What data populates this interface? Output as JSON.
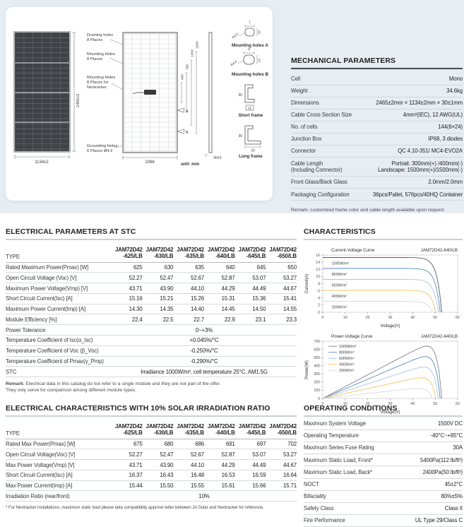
{
  "page": {
    "band_bg": "#e6edf3",
    "bg": "#ffffff",
    "accent_dark": "#4a4b4d",
    "rule_gray": "#c7d0d8"
  },
  "drawing": {
    "front": {
      "height_dim": "2465±2",
      "width_dim": "1134±2"
    },
    "back": {
      "labels": [
        {
          "l1": "Draining holes",
          "l2": "8 Places"
        },
        {
          "l1": "Mounting Holes",
          "l2": "8 Places"
        },
        {
          "l1": "Mounting Holes",
          "l2": "8 Places for",
          "l3": "Nextracker"
        },
        {
          "l1": "Grounding Holes",
          "l2": "6 Places Ø4.2"
        }
      ],
      "width_dim": "1086",
      "dims": [
        "400",
        "790",
        "1300",
        "1600"
      ],
      "marker_a": "A",
      "marker_b": "B"
    },
    "side_dim": "30±1",
    "unit": "unit: mm",
    "details": {
      "a": {
        "title": "Mounting holes A",
        "w": "7",
        "h": "10",
        "r": "R3.5"
      },
      "b": {
        "title": "Mounting holes B",
        "w": "9",
        "h": "14",
        "r": "R4.5"
      },
      "sf": {
        "title": "Short frame",
        "h": "30",
        "w": "15"
      },
      "lf": {
        "title": "Long frame",
        "h": "30",
        "w": "33"
      }
    }
  },
  "mechanical": {
    "title": "MECHANICAL PARAMETERS",
    "rows": [
      {
        "label": "Cell",
        "value": "Mono"
      },
      {
        "label": "Weight",
        "value": "34.6kg"
      },
      {
        "label": "Dimensions",
        "value": "2465±2mm × 1134±2mm × 30±1mm"
      },
      {
        "label": "Cable Cross Section Size",
        "value": "4mm²(IEC), 12 AWG(UL)"
      },
      {
        "label": "No. of cells",
        "value": "144(6×24)"
      },
      {
        "label": "Junction Box",
        "value": "IP68, 3 diodes"
      },
      {
        "label": "Connector",
        "value": "QC 4.10-351/ MC4-EVO2A"
      },
      {
        "label": "Cable Length",
        "label2": "(Including Connector)",
        "value": "Portrait: 300mm(+) /400mm(-)",
        "value2": "Landscape: 1500mm(+)/1500mm(-)"
      },
      {
        "label": "Front Glass/Back Glass",
        "value": "2.0mm/2.0mm"
      },
      {
        "label": "Packaging Configuration",
        "value": "36pcs/Pallet, 576pcs/40HQ Container"
      }
    ],
    "remark": "Remark: customized frame color and cable length available upon request"
  },
  "stc": {
    "title": "ELECTRICAL PARAMETERS AT STC",
    "type_header": "TYPE",
    "model": "JAM72D42",
    "variants": [
      "-625/LB",
      "-630/LB",
      "-635/LB",
      "-640/LB",
      "-645/LB",
      "-650/LB"
    ],
    "rows": [
      {
        "label": "Rated Maximum Power(Pmax) [W]",
        "values": [
          "625",
          "630",
          "635",
          "640",
          "645",
          "650"
        ]
      },
      {
        "label": "Open Circuit Voltage (Voc) [V]",
        "values": [
          "52.27",
          "52.47",
          "52.67",
          "52.87",
          "53.07",
          "53.27"
        ]
      },
      {
        "label": "Maximum Power Voltage(Vmp) [V]",
        "values": [
          "43.71",
          "43.90",
          "44.10",
          "44.29",
          "44.49",
          "44.67"
        ]
      },
      {
        "label": "Short Circuit Current(Isc) [A]",
        "values": [
          "15.16",
          "15.21",
          "15.26",
          "15.31",
          "15.36",
          "15.41"
        ]
      },
      {
        "label": "Maximum Power Current(Imp) [A]",
        "values": [
          "14.30",
          "14.35",
          "14.40",
          "14.45",
          "14.50",
          "14.55"
        ]
      },
      {
        "label": "Module Efficiency [%]",
        "values": [
          "22.4",
          "22.5",
          "22.7",
          "22.9",
          "23.1",
          "23.3"
        ]
      },
      {
        "label": "Power Tolerance",
        "span": "0~+3%"
      },
      {
        "label": "Temperature Coefficient of Isc(α_Isc)",
        "span": "+0.045%/°C"
      },
      {
        "label": "Temperature Coefficient of Voc (β_Voc)",
        "span": "-0.250%/°C"
      },
      {
        "label": "Temperature Coefficient of Pmax(γ_Pmp)",
        "span": "-0.290%/°C"
      },
      {
        "label": "STC",
        "span": "Irradiance 1000W/m², cell temperature 25°C, AM1.5G"
      }
    ],
    "remark_bold": "Remark:",
    "remark_line1": "Electrical data in this catalog do not refer to a single module and they are not part of the offer.",
    "remark_line2": "They only serve for comparison among different module types."
  },
  "ratio": {
    "title": "ELECTRICAL CHARACTERISTICS WITH 10% SOLAR IRRADIATION RATIO",
    "type_header": "TYPE",
    "model": "JAM72D42",
    "variants": [
      "-625/LB",
      "-630/LB",
      "-635/LB",
      "-640/LB",
      "-645/LB",
      "-650/LB"
    ],
    "rows": [
      {
        "label": "Rated Max Power(Pmax) [W]",
        "values": [
          "675",
          "680",
          "686",
          "691",
          "697",
          "702"
        ]
      },
      {
        "label": "Open Circuit Voltage(Voc) [V]",
        "values": [
          "52.27",
          "52.47",
          "52.67",
          "52.87",
          "53.07",
          "53.27"
        ]
      },
      {
        "label": "Max Power Voltage(Vmp) [V]",
        "values": [
          "43.71",
          "43.90",
          "44.10",
          "44.29",
          "44.49",
          "44.67"
        ]
      },
      {
        "label": "Short Circuit Current(Isc) [A]",
        "values": [
          "16.37",
          "16.43",
          "16.48",
          "16.53",
          "16.59",
          "16.64"
        ]
      },
      {
        "label": "Max Power Current(Imp) [A]",
        "values": [
          "15.44",
          "15.50",
          "15.55",
          "15.61",
          "15.66",
          "15.71"
        ]
      },
      {
        "label": "Irradiation Ratio (rear/front)",
        "span": "10%"
      }
    ],
    "footnote": "* For Nextracker installations, maximum static load please take compatibility approve letter between JA Solar and Nextracker for reference."
  },
  "characteristics": {
    "title": "CHARACTERISTICS"
  },
  "chart_data": [
    {
      "type": "line",
      "id": "iv",
      "title": "Current-Voltage Curve",
      "model": "JAM72D42-640/LB",
      "xlabel": "Voltage(V)",
      "ylabel": "Current(A)",
      "xlim": [
        0,
        60
      ],
      "ylim": [
        0,
        16
      ],
      "xticks": [
        0,
        10,
        20,
        30,
        40,
        50,
        60
      ],
      "yticks": [
        0,
        2,
        4,
        6,
        8,
        10,
        12,
        14,
        16
      ],
      "grid": false,
      "legend": "text",
      "series": [
        {
          "name": "1000W/m²",
          "color": "#58595b",
          "isc": 15.31,
          "voc": 52.9
        },
        {
          "name": "800W/m²",
          "color": "#5b8ac2",
          "isc": 12.25,
          "voc": 52.2
        },
        {
          "name": "600W/m²",
          "color": "#a9c7e3",
          "isc": 9.19,
          "voc": 51.4
        },
        {
          "name": "400W/m²",
          "color": "#f2c564",
          "isc": 6.12,
          "voc": 50.3
        },
        {
          "name": "200W/m²",
          "color": "#d9d9d9",
          "isc": 3.06,
          "voc": 48.8
        }
      ]
    },
    {
      "type": "line",
      "id": "pv",
      "title": "Power-Voltage Curve",
      "model": "JAM72D42-640/LB",
      "xlabel": "Voltage(V)",
      "ylabel": "Power(W)",
      "xlim": [
        0,
        60
      ],
      "ylim": [
        0,
        700
      ],
      "xticks": [
        0,
        10,
        20,
        30,
        40,
        50,
        60
      ],
      "yticks": [
        0,
        100,
        200,
        300,
        400,
        500,
        600,
        700
      ],
      "grid": false,
      "legend": "swatch",
      "series": [
        {
          "name": "1000W/m²",
          "color": "#808285",
          "isc": 15.31,
          "voc": 52.9,
          "pmax": 640
        },
        {
          "name": "800W/m²",
          "color": "#5b8ac2",
          "isc": 12.25,
          "voc": 52.2,
          "pmax": 512
        },
        {
          "name": "600W/m²",
          "color": "#a9c7e3",
          "isc": 9.19,
          "voc": 51.4,
          "pmax": 383
        },
        {
          "name": "400W/m²",
          "color": "#f2c564",
          "isc": 6.12,
          "voc": 50.3,
          "pmax": 252
        },
        {
          "name": "200W/m²",
          "color": "#d9d9d9",
          "isc": 3.06,
          "voc": 48.8,
          "pmax": 122
        }
      ]
    }
  ],
  "operating": {
    "title": "OPERATING CONDITIONS",
    "rows": [
      {
        "label": "Maximum System Voltage",
        "value": "1500V DC"
      },
      {
        "label": "Operating Temperature",
        "value": "-40°C~+85°C"
      },
      {
        "label": "Maximum Series Fuse Rating",
        "value": "30A"
      },
      {
        "label": "Maximum Static Load, Front*",
        "value": "5400Pa(112 lb/ft²)"
      },
      {
        "label": "Maximum Static Load, Back*",
        "value": "2400Pa(50 lb/ft²)"
      },
      {
        "label": "NOCT",
        "value": "45±2°C"
      },
      {
        "label": "Bifaciality",
        "value": "80%±5%"
      },
      {
        "label": "Safety Class",
        "value": "Class II"
      },
      {
        "label": "Fire Performance",
        "value": "UL Type 29/Class C"
      }
    ]
  }
}
